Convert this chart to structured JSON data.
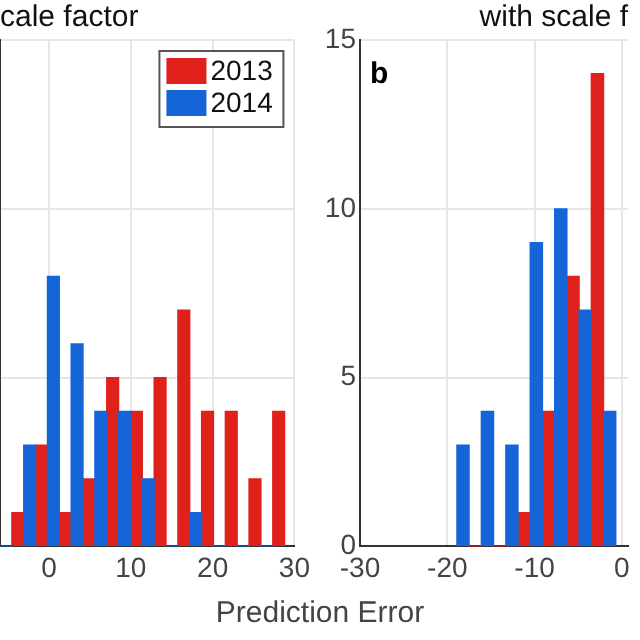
{
  "chart_data": [
    {
      "type": "histogram",
      "title": "cale factor",
      "xlabel": "Prediction Error",
      "bins": [
        -6,
        -3.1,
        -0.2,
        2.7,
        5.6,
        8.5,
        11.4,
        14.3,
        17.2,
        20.1,
        23,
        25.9,
        28.8
      ],
      "xlim": [
        -6,
        30
      ],
      "xticks": [
        0,
        10,
        20,
        30
      ],
      "ylim": [
        0,
        15
      ],
      "yticks": [
        0,
        5,
        10,
        15
      ],
      "grid": true,
      "legend": "top right",
      "tick_labels": "x",
      "series": [
        {
          "name": "2013",
          "color": "#e0201b",
          "values": [
            1,
            3,
            1,
            2,
            5,
            4,
            5,
            7,
            4,
            4,
            2,
            4
          ]
        },
        {
          "name": "2014",
          "color": "#1565d8",
          "values": [
            0,
            3,
            8,
            6,
            4,
            4,
            2,
            0,
            1,
            0,
            0,
            0
          ]
        }
      ]
    },
    {
      "type": "histogram",
      "title": "with scale f",
      "annotations": [
        "b"
      ],
      "bins": [
        -18.9,
        -16.1,
        -13.3,
        -10.5,
        -7.7,
        -4.9,
        -2.1,
        0.7
      ],
      "xlim": [
        -30,
        0.7
      ],
      "xticks": [
        -30,
        -20,
        -10,
        0
      ],
      "ylim": [
        0,
        15
      ],
      "yticks": [
        0,
        5,
        10,
        15
      ],
      "grid": true,
      "series": [
        {
          "color": "#e0201b",
          "values": [
            0,
            0,
            1,
            4,
            8,
            14,
            null
          ]
        },
        {
          "color": "#1565d8",
          "values": [
            3,
            4,
            3,
            9,
            10,
            7,
            4
          ]
        }
      ]
    }
  ]
}
